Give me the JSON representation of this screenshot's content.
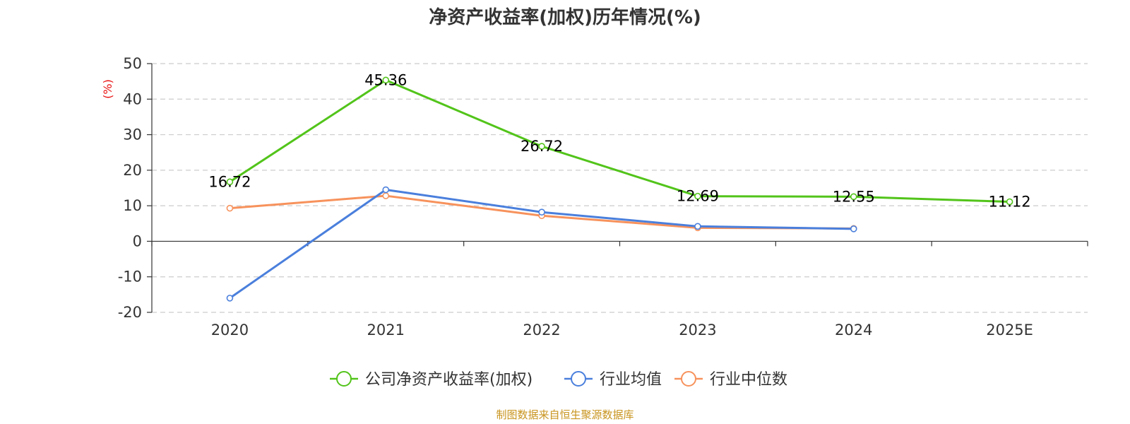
{
  "chart_data": {
    "type": "line",
    "title": "净资产收益率(加权)历年情况(%)",
    "ylabel": "(%)",
    "xlabel": "",
    "categories": [
      "2020",
      "2021",
      "2022",
      "2023",
      "2024",
      "2025E"
    ],
    "yticks": [
      "50",
      "40",
      "30",
      "20",
      "10",
      "0",
      "-10",
      "-20"
    ],
    "ylim": [
      -20,
      50
    ],
    "grid": true,
    "legend_position": "bottom-center",
    "series": [
      {
        "name": "公司净资产收益率(加权)",
        "color": "#52c41a",
        "values": [
          16.72,
          45.36,
          26.72,
          12.69,
          12.55,
          11.12
        ],
        "labels": [
          "16.72",
          "45.36",
          "26.72",
          "12.69",
          "12.55",
          "11.12"
        ]
      },
      {
        "name": "行业均值",
        "color": "#4a7fdc",
        "values": [
          -16.0,
          14.5,
          8.2,
          4.2,
          3.5,
          null
        ]
      },
      {
        "name": "行业中位数",
        "color": "#f7925c",
        "values": [
          9.3,
          12.8,
          7.2,
          3.8,
          3.6,
          null
        ]
      }
    ]
  },
  "footer": {
    "source": "制图数据来自恒生聚源数据库"
  }
}
